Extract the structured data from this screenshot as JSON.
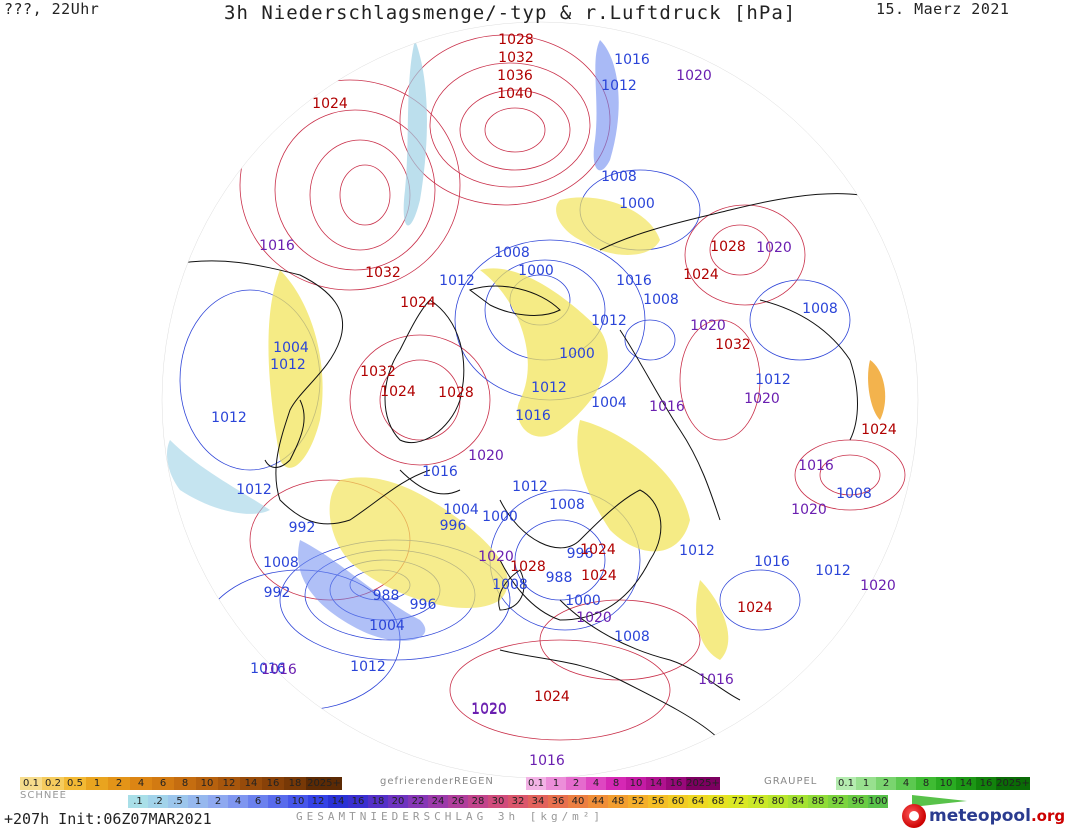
{
  "header": {
    "left_label": "???, 22Uhr",
    "title": "3h Niederschlagsmenge/-typ & r.Luftdruck [hPa]",
    "date": "15. Maerz 2021"
  },
  "map": {
    "pressure_labels": [
      {
        "text": "1028",
        "color": "red"
      },
      {
        "text": "1032",
        "color": "red"
      },
      {
        "text": "1036",
        "color": "red"
      },
      {
        "text": "1040",
        "color": "red"
      },
      {
        "text": "1024",
        "color": "red"
      },
      {
        "text": "1016",
        "color": "blue"
      },
      {
        "text": "1012",
        "color": "blue"
      },
      {
        "text": "1020",
        "color": "purple"
      },
      {
        "text": "1008",
        "color": "blue"
      },
      {
        "text": "1000",
        "color": "blue"
      },
      {
        "text": "1016",
        "color": "purple"
      },
      {
        "text": "1032",
        "color": "red"
      },
      {
        "text": "1012",
        "color": "blue"
      },
      {
        "text": "1008",
        "color": "blue"
      },
      {
        "text": "1000",
        "color": "blue"
      },
      {
        "text": "1024",
        "color": "red"
      },
      {
        "text": "1028",
        "color": "red"
      },
      {
        "text": "1020",
        "color": "purple"
      },
      {
        "text": "1024",
        "color": "red"
      },
      {
        "text": "1016",
        "color": "blue"
      },
      {
        "text": "1008",
        "color": "blue"
      },
      {
        "text": "1012",
        "color": "blue"
      },
      {
        "text": "1020",
        "color": "purple"
      },
      {
        "text": "1032",
        "color": "red"
      },
      {
        "text": "1008",
        "color": "blue"
      },
      {
        "text": "1004",
        "color": "blue"
      },
      {
        "text": "1012",
        "color": "blue"
      },
      {
        "text": "1000",
        "color": "blue"
      },
      {
        "text": "1012",
        "color": "blue"
      },
      {
        "text": "1032",
        "color": "red"
      },
      {
        "text": "1024",
        "color": "red"
      },
      {
        "text": "1028",
        "color": "red"
      },
      {
        "text": "1012",
        "color": "blue"
      },
      {
        "text": "1016",
        "color": "blue"
      },
      {
        "text": "1004",
        "color": "blue"
      },
      {
        "text": "1016",
        "color": "purple"
      },
      {
        "text": "1012",
        "color": "blue"
      },
      {
        "text": "1020",
        "color": "purple"
      },
      {
        "text": "1016",
        "color": "purple"
      },
      {
        "text": "1020",
        "color": "purple"
      },
      {
        "text": "1024",
        "color": "red"
      },
      {
        "text": "1016",
        "color": "blue"
      },
      {
        "text": "1012",
        "color": "blue"
      },
      {
        "text": "1020",
        "color": "purple"
      },
      {
        "text": "1008",
        "color": "blue"
      },
      {
        "text": "1012",
        "color": "blue"
      },
      {
        "text": "1004",
        "color": "blue"
      },
      {
        "text": "996",
        "color": "blue"
      },
      {
        "text": "1000",
        "color": "blue"
      },
      {
        "text": "1008",
        "color": "blue"
      },
      {
        "text": "992",
        "color": "blue"
      },
      {
        "text": "1008",
        "color": "blue"
      },
      {
        "text": "1020",
        "color": "purple"
      },
      {
        "text": "1028",
        "color": "red"
      },
      {
        "text": "1024",
        "color": "red"
      },
      {
        "text": "988",
        "color": "blue"
      },
      {
        "text": "1000",
        "color": "blue"
      },
      {
        "text": "996",
        "color": "blue"
      },
      {
        "text": "1024",
        "color": "red"
      },
      {
        "text": "1012",
        "color": "blue"
      },
      {
        "text": "1016",
        "color": "blue"
      },
      {
        "text": "1012",
        "color": "blue"
      },
      {
        "text": "1020",
        "color": "purple"
      },
      {
        "text": "992",
        "color": "blue"
      },
      {
        "text": "988",
        "color": "blue"
      },
      {
        "text": "996",
        "color": "blue"
      },
      {
        "text": "1004",
        "color": "blue"
      },
      {
        "text": "1008",
        "color": "blue"
      },
      {
        "text": "1020",
        "color": "purple"
      },
      {
        "text": "1024",
        "color": "red"
      },
      {
        "text": "1008",
        "color": "blue"
      },
      {
        "text": "1016",
        "color": "blue"
      },
      {
        "text": "1012",
        "color": "blue"
      },
      {
        "text": "1016",
        "color": "purple"
      },
      {
        "text": "1024",
        "color": "red"
      },
      {
        "text": "1020",
        "color": "purple"
      },
      {
        "text": "1016",
        "color": "purple"
      },
      {
        "text": "1016",
        "color": "purple"
      },
      {
        "text": "1020",
        "color": "purple"
      }
    ],
    "colors": {
      "high": "#b00000",
      "low": "#2a44d8",
      "mid": "#6a1fb0"
    }
  },
  "legend": {
    "snow_title": "SCHNEE",
    "snow": [
      "0.1",
      "0.2",
      "0.5",
      "1",
      "2",
      "4",
      "6",
      "8",
      "10",
      "12",
      "14",
      "16",
      "18",
      "2025+"
    ],
    "snow_colors": [
      "#f6dc8c",
      "#f5cc5e",
      "#f2b934",
      "#e9a41f",
      "#e39418",
      "#dc8514",
      "#d27a12",
      "#c56d10",
      "#b6610e",
      "#a7560c",
      "#974b0a",
      "#884108",
      "#773806",
      "#5c2a04"
    ],
    "rain_title": "gefrierenderREGEN",
    "rain": [
      "0.1",
      "1",
      "2",
      "4",
      "8",
      "10",
      "14",
      "16",
      "2025+"
    ],
    "rain_colors": [
      "#f3b3e6",
      "#ec8ed9",
      "#e56bcd",
      "#de47c1",
      "#d528b4",
      "#c41ba4",
      "#b0128f",
      "#98087a",
      "#7c0060"
    ],
    "hail_title": "GRAUPEL",
    "hail": [
      "0.1",
      "1",
      "2",
      "4",
      "8",
      "10",
      "14",
      "16",
      "2025+"
    ],
    "hail_colors": [
      "#b5ecb0",
      "#98e08f",
      "#7ad46f",
      "#5cc850",
      "#3fbb33",
      "#2aab22",
      "#1c9715",
      "#12820c",
      "#0a6b06"
    ],
    "total": [
      ".1",
      ".2",
      ".5",
      "1",
      "2",
      "4",
      "6",
      "8",
      "10",
      "12",
      "14",
      "16",
      "18",
      "20",
      "22",
      "24",
      "26",
      "28",
      "30",
      "32",
      "34",
      "36",
      "40",
      "44",
      "48",
      "52",
      "56",
      "60",
      "64",
      "68",
      "72",
      "76",
      "80",
      "84",
      "88",
      "92",
      "96",
      "100"
    ],
    "total_colors": [
      "#a9dfe8",
      "#a2d3ea",
      "#9cc6ec",
      "#96b8ee",
      "#8fa9f0",
      "#7f96f0",
      "#6b81ee",
      "#586bec",
      "#4656ea",
      "#3442e6",
      "#2a32d6",
      "#3a2fd0",
      "#5430c8",
      "#6e33c0",
      "#8636b6",
      "#9c3aaa",
      "#b03e9c",
      "#c2448c",
      "#d04c7c",
      "#da566c",
      "#e2625c",
      "#e8704e",
      "#ec7f42",
      "#f08e38",
      "#f29e30",
      "#f4ae2a",
      "#f4be26",
      "#f2cc24",
      "#eed822",
      "#e6e222",
      "#dae824",
      "#cae828",
      "#b8e62c",
      "#a4e232",
      "#90dc38",
      "#7cd43e",
      "#6acc44",
      "#58c24a"
    ],
    "total_caption": "GESAMTNIEDERSCHLAG 3h [kg/m²]"
  },
  "footer": {
    "run_info": "+207h  Init:06Z07MAR2021",
    "brand_name": "meteopool",
    "brand_tld": ".org"
  }
}
